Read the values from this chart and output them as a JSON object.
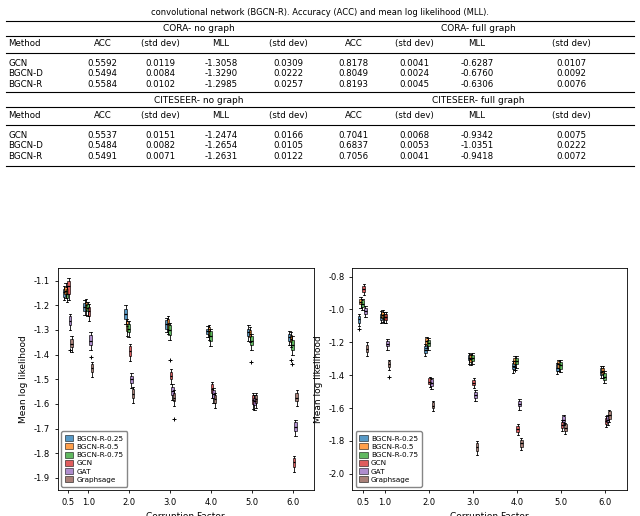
{
  "table_header_top": "convolutional network (BGCN-R). Accuracy (ACC) and mean log likelihood (MLL).",
  "col_headers": [
    "Method",
    "ACC",
    "(std dev)",
    "MLL",
    "(std dev)",
    "ACC",
    "(std dev)",
    "MLL",
    "(std dev)"
  ],
  "cora_rows": [
    [
      "GCN",
      "0.5592",
      "0.0119",
      "-1.3058",
      "0.0309",
      "0.8178",
      "0.0041",
      "-0.6287",
      "0.0107"
    ],
    [
      "BGCN-D",
      "0.5494",
      "0.0084",
      "-1.3290",
      "0.0222",
      "0.8049",
      "0.0024",
      "-0.6760",
      "0.0092"
    ],
    [
      "BGCN-R",
      "0.5584",
      "0.0102",
      "-1.2985",
      "0.0257",
      "0.8193",
      "0.0045",
      "-0.6306",
      "0.0076"
    ]
  ],
  "cite_rows": [
    [
      "GCN",
      "0.5537",
      "0.0151",
      "-1.2474",
      "0.0166",
      "0.7041",
      "0.0068",
      "-0.9342",
      "0.0075"
    ],
    [
      "BGCN-D",
      "0.5484",
      "0.0082",
      "-1.2654",
      "0.0105",
      "0.6837",
      "0.0053",
      "-1.0351",
      "0.0222"
    ],
    [
      "BGCN-R",
      "0.5491",
      "0.0071",
      "-1.2631",
      "0.0122",
      "0.7056",
      "0.0041",
      "-0.9418",
      "0.0072"
    ]
  ],
  "x_positions": [
    0.5,
    1.0,
    2.0,
    3.0,
    4.0,
    5.0,
    6.0
  ],
  "colors": {
    "BGCN-R-0.25": "#1f77b4",
    "BGCN-R-0.5": "#ff7f0e",
    "BGCN-R-0.75": "#2ca02c",
    "GCN": "#d62728",
    "GAT": "#9467bd",
    "Graphsage": "#8c564b"
  },
  "legend_labels": [
    "BGCN-R-0.25",
    "BGCN-R-0.5",
    "BGCN-R-0.75",
    "GCN",
    "GAT",
    "Graphsage"
  ],
  "left_ylim": [
    -1.95,
    -1.05
  ],
  "right_ylim": [
    -2.1,
    -0.75
  ],
  "left_yticks": [
    -1.9,
    -1.8,
    -1.7,
    -1.6,
    -1.5,
    -1.4,
    -1.3,
    -1.2,
    -1.1
  ],
  "right_yticks": [
    -2.0,
    -1.8,
    -1.6,
    -1.4,
    -1.2,
    -1.0,
    -0.8
  ],
  "xlabel": "Corruption Factor",
  "ylabel": "Mean log likelihood",
  "left_plot_data": {
    "BGCN-R-0.25": {
      "0.5": {
        "q1": -1.165,
        "med": -1.148,
        "q3": -1.135,
        "whisk_lo": -1.18,
        "whisk_hi": -1.12,
        "fliers_lo": [],
        "fliers_hi": []
      },
      "1.0": {
        "q1": -1.225,
        "med": -1.205,
        "q3": -1.19,
        "whisk_lo": -1.24,
        "whisk_hi": -1.18,
        "fliers_lo": [],
        "fliers_hi": []
      },
      "2.0": {
        "q1": -1.255,
        "med": -1.235,
        "q3": -1.215,
        "whisk_lo": -1.275,
        "whisk_hi": -1.2,
        "fliers_lo": [],
        "fliers_hi": []
      },
      "3.0": {
        "q1": -1.295,
        "med": -1.275,
        "q3": -1.26,
        "whisk_lo": -1.31,
        "whisk_hi": -1.25,
        "fliers_lo": [],
        "fliers_hi": []
      },
      "4.0": {
        "q1": -1.315,
        "med": -1.305,
        "q3": -1.295,
        "whisk_lo": -1.33,
        "whisk_hi": -1.285,
        "fliers_lo": [],
        "fliers_hi": []
      },
      "5.0": {
        "q1": -1.325,
        "med": -1.31,
        "q3": -1.295,
        "whisk_lo": -1.345,
        "whisk_hi": -1.28,
        "fliers_lo": [],
        "fliers_hi": []
      },
      "6.0": {
        "q1": -1.345,
        "med": -1.33,
        "q3": -1.315,
        "whisk_lo": -1.36,
        "whisk_hi": -1.305,
        "fliers_lo": [],
        "fliers_hi": []
      }
    },
    "BGCN-R-0.5": {
      "0.5": {
        "q1": -1.155,
        "med": -1.14,
        "q3": -1.125,
        "whisk_lo": -1.17,
        "whisk_hi": -1.11,
        "fliers_lo": [],
        "fliers_hi": []
      },
      "1.0": {
        "q1": -1.22,
        "med": -1.2,
        "q3": -1.185,
        "whisk_lo": -1.24,
        "whisk_hi": -1.175,
        "fliers_lo": [],
        "fliers_hi": []
      },
      "2.0": {
        "q1": -1.305,
        "med": -1.285,
        "q3": -1.265,
        "whisk_lo": -1.325,
        "whisk_hi": -1.255,
        "fliers_lo": [],
        "fliers_hi": []
      },
      "3.0": {
        "q1": -1.295,
        "med": -1.275,
        "q3": -1.255,
        "whisk_lo": -1.315,
        "whisk_hi": -1.245,
        "fliers_lo": [],
        "fliers_hi": []
      },
      "4.0": {
        "q1": -1.32,
        "med": -1.305,
        "q3": -1.29,
        "whisk_lo": -1.34,
        "whisk_hi": -1.28,
        "fliers_lo": [],
        "fliers_hi": []
      },
      "5.0": {
        "q1": -1.33,
        "med": -1.315,
        "q3": -1.3,
        "whisk_lo": -1.35,
        "whisk_hi": -1.29,
        "fliers_lo": [],
        "fliers_hi": []
      },
      "6.0": {
        "q1": -1.35,
        "med": -1.335,
        "q3": -1.32,
        "whisk_lo": -1.37,
        "whisk_hi": -1.31,
        "fliers_lo": [
          -1.42
        ],
        "fliers_hi": []
      }
    },
    "BGCN-R-0.75": {
      "0.5": {
        "q1": -1.17,
        "med": -1.155,
        "q3": -1.135,
        "whisk_lo": -1.185,
        "whisk_hi": -1.12,
        "fliers_lo": [],
        "fliers_hi": []
      },
      "1.0": {
        "q1": -1.225,
        "med": -1.21,
        "q3": -1.195,
        "whisk_lo": -1.245,
        "whisk_hi": -1.185,
        "fliers_lo": [],
        "fliers_hi": []
      },
      "2.0": {
        "q1": -1.31,
        "med": -1.295,
        "q3": -1.275,
        "whisk_lo": -1.33,
        "whisk_hi": -1.265,
        "fliers_lo": [],
        "fliers_hi": []
      },
      "3.0": {
        "q1": -1.32,
        "med": -1.3,
        "q3": -1.28,
        "whisk_lo": -1.34,
        "whisk_hi": -1.27,
        "fliers_lo": [
          -1.42
        ],
        "fliers_hi": []
      },
      "4.0": {
        "q1": -1.345,
        "med": -1.325,
        "q3": -1.305,
        "whisk_lo": -1.365,
        "whisk_hi": -1.295,
        "fliers_lo": [],
        "fliers_hi": []
      },
      "5.0": {
        "q1": -1.36,
        "med": -1.345,
        "q3": -1.325,
        "whisk_lo": -1.38,
        "whisk_hi": -1.315,
        "fliers_lo": [
          -1.43
        ],
        "fliers_hi": []
      },
      "6.0": {
        "q1": -1.38,
        "med": -1.36,
        "q3": -1.34,
        "whisk_lo": -1.4,
        "whisk_hi": -1.325,
        "fliers_lo": [
          -1.44
        ],
        "fliers_hi": []
      }
    },
    "GCN": {
      "0.5": {
        "q1": -1.155,
        "med": -1.12,
        "q3": -1.1,
        "whisk_lo": -1.18,
        "whisk_hi": -1.09,
        "fliers_lo": [],
        "fliers_hi": []
      },
      "1.0": {
        "q1": -1.245,
        "med": -1.225,
        "q3": -1.205,
        "whisk_lo": -1.265,
        "whisk_hi": -1.195,
        "fliers_lo": [],
        "fliers_hi": []
      },
      "2.0": {
        "q1": -1.405,
        "med": -1.385,
        "q3": -1.365,
        "whisk_lo": -1.425,
        "whisk_hi": -1.355,
        "fliers_lo": [],
        "fliers_hi": []
      },
      "3.0": {
        "q1": -1.5,
        "med": -1.485,
        "q3": -1.47,
        "whisk_lo": -1.52,
        "whisk_hi": -1.46,
        "fliers_lo": [],
        "fliers_hi": []
      },
      "4.0": {
        "q1": -1.555,
        "med": -1.54,
        "q3": -1.52,
        "whisk_lo": -1.575,
        "whisk_hi": -1.51,
        "fliers_lo": [],
        "fliers_hi": []
      },
      "5.0": {
        "q1": -1.6,
        "med": -1.585,
        "q3": -1.565,
        "whisk_lo": -1.62,
        "whisk_hi": -1.555,
        "fliers_lo": [],
        "fliers_hi": []
      },
      "6.0": {
        "q1": -1.855,
        "med": -1.835,
        "q3": -1.82,
        "whisk_lo": -1.875,
        "whisk_hi": -1.81,
        "fliers_lo": [],
        "fliers_hi": []
      }
    },
    "GAT": {
      "0.5": {
        "q1": -1.28,
        "med": -1.265,
        "q3": -1.245,
        "whisk_lo": -1.3,
        "whisk_hi": -1.235,
        "fliers_lo": [
          -1.38
        ],
        "fliers_hi": []
      },
      "1.0": {
        "q1": -1.36,
        "med": -1.345,
        "q3": -1.32,
        "whisk_lo": -1.38,
        "whisk_hi": -1.31,
        "fliers_lo": [
          -1.41
        ],
        "fliers_hi": []
      },
      "2.0": {
        "q1": -1.515,
        "med": -1.5,
        "q3": -1.485,
        "whisk_lo": -1.535,
        "whisk_hi": -1.475,
        "fliers_lo": [],
        "fliers_hi": []
      },
      "3.0": {
        "q1": -1.565,
        "med": -1.548,
        "q3": -1.53,
        "whisk_lo": -1.585,
        "whisk_hi": -1.52,
        "fliers_lo": [],
        "fliers_hi": []
      },
      "4.0": {
        "q1": -1.575,
        "med": -1.56,
        "q3": -1.545,
        "whisk_lo": -1.595,
        "whisk_hi": -1.535,
        "fliers_lo": [],
        "fliers_hi": []
      },
      "5.0": {
        "q1": -1.605,
        "med": -1.59,
        "q3": -1.575,
        "whisk_lo": -1.625,
        "whisk_hi": -1.565,
        "fliers_lo": [],
        "fliers_hi": []
      },
      "6.0": {
        "q1": -1.71,
        "med": -1.695,
        "q3": -1.675,
        "whisk_lo": -1.73,
        "whisk_hi": -1.665,
        "fliers_lo": [],
        "fliers_hi": []
      }
    },
    "Graphsage": {
      "0.5": {
        "q1": -1.37,
        "med": -1.355,
        "q3": -1.335,
        "whisk_lo": -1.39,
        "whisk_hi": -1.325,
        "fliers_lo": [],
        "fliers_hi": []
      },
      "1.0": {
        "q1": -1.47,
        "med": -1.455,
        "q3": -1.44,
        "whisk_lo": -1.49,
        "whisk_hi": -1.43,
        "fliers_lo": [],
        "fliers_hi": []
      },
      "2.0": {
        "q1": -1.575,
        "med": -1.56,
        "q3": -1.54,
        "whisk_lo": -1.595,
        "whisk_hi": -1.53,
        "fliers_lo": [],
        "fliers_hi": []
      },
      "3.0": {
        "q1": -1.59,
        "med": -1.575,
        "q3": -1.555,
        "whisk_lo": -1.61,
        "whisk_hi": -1.545,
        "fliers_lo": [
          -1.66
        ],
        "fliers_hi": []
      },
      "4.0": {
        "q1": -1.595,
        "med": -1.58,
        "q3": -1.565,
        "whisk_lo": -1.615,
        "whisk_hi": -1.555,
        "fliers_lo": [],
        "fliers_hi": []
      },
      "5.0": {
        "q1": -1.595,
        "med": -1.58,
        "q3": -1.565,
        "whisk_lo": -1.615,
        "whisk_hi": -1.555,
        "fliers_lo": [],
        "fliers_hi": []
      },
      "6.0": {
        "q1": -1.59,
        "med": -1.575,
        "q3": -1.555,
        "whisk_lo": -1.61,
        "whisk_hi": -1.545,
        "fliers_lo": [],
        "fliers_hi": []
      }
    }
  },
  "right_plot_data": {
    "BGCN-R-0.25": {
      "0.5": {
        "q1": -1.08,
        "med": -1.06,
        "q3": -1.04,
        "whisk_lo": -1.1,
        "whisk_hi": -1.03,
        "fliers_lo": [
          -1.12
        ],
        "fliers_hi": []
      },
      "1.0": {
        "q1": -1.065,
        "med": -1.045,
        "q3": -1.025,
        "whisk_lo": -1.085,
        "whisk_hi": -1.01,
        "fliers_lo": [],
        "fliers_hi": []
      },
      "2.0": {
        "q1": -1.265,
        "med": -1.245,
        "q3": -1.225,
        "whisk_lo": -1.285,
        "whisk_hi": -1.21,
        "fliers_lo": [],
        "fliers_hi": []
      },
      "3.0": {
        "q1": -1.31,
        "med": -1.295,
        "q3": -1.275,
        "whisk_lo": -1.33,
        "whisk_hi": -1.265,
        "fliers_lo": [],
        "fliers_hi": []
      },
      "4.0": {
        "q1": -1.365,
        "med": -1.345,
        "q3": -1.325,
        "whisk_lo": -1.385,
        "whisk_hi": -1.315,
        "fliers_lo": [],
        "fliers_hi": []
      },
      "5.0": {
        "q1": -1.375,
        "med": -1.355,
        "q3": -1.335,
        "whisk_lo": -1.395,
        "whisk_hi": -1.325,
        "fliers_lo": [],
        "fliers_hi": []
      },
      "6.0": {
        "q1": -1.4,
        "med": -1.38,
        "q3": -1.355,
        "whisk_lo": -1.42,
        "whisk_hi": -1.345,
        "fliers_lo": [],
        "fliers_hi": []
      }
    },
    "BGCN-R-0.5": {
      "0.5": {
        "q1": -0.97,
        "med": -0.955,
        "q3": -0.935,
        "whisk_lo": -0.99,
        "whisk_hi": -0.925,
        "fliers_lo": [],
        "fliers_hi": []
      },
      "1.0": {
        "q1": -1.055,
        "med": -1.035,
        "q3": -1.015,
        "whisk_lo": -1.075,
        "whisk_hi": -1.005,
        "fliers_lo": [],
        "fliers_hi": []
      },
      "2.0": {
        "q1": -1.215,
        "med": -1.195,
        "q3": -1.175,
        "whisk_lo": -1.235,
        "whisk_hi": -1.165,
        "fliers_lo": [],
        "fliers_hi": []
      },
      "3.0": {
        "q1": -1.32,
        "med": -1.3,
        "q3": -1.28,
        "whisk_lo": -1.34,
        "whisk_hi": -1.27,
        "fliers_lo": [],
        "fliers_hi": []
      },
      "4.0": {
        "q1": -1.33,
        "med": -1.315,
        "q3": -1.295,
        "whisk_lo": -1.35,
        "whisk_hi": -1.285,
        "fliers_lo": [
          -1.37
        ],
        "fliers_hi": []
      },
      "5.0": {
        "q1": -1.355,
        "med": -1.335,
        "q3": -1.315,
        "whisk_lo": -1.375,
        "whisk_hi": -1.305,
        "fliers_lo": [],
        "fliers_hi": []
      },
      "6.0": {
        "q1": -1.395,
        "med": -1.375,
        "q3": -1.355,
        "whisk_lo": -1.415,
        "whisk_hi": -1.345,
        "fliers_lo": [],
        "fliers_hi": []
      }
    },
    "BGCN-R-0.75": {
      "0.5": {
        "q1": -0.985,
        "med": -0.965,
        "q3": -0.945,
        "whisk_lo": -1.005,
        "whisk_hi": -0.935,
        "fliers_lo": [],
        "fliers_hi": []
      },
      "1.0": {
        "q1": -1.06,
        "med": -1.045,
        "q3": -1.025,
        "whisk_lo": -1.08,
        "whisk_hi": -1.015,
        "fliers_lo": [],
        "fliers_hi": []
      },
      "2.0": {
        "q1": -1.225,
        "med": -1.205,
        "q3": -1.185,
        "whisk_lo": -1.245,
        "whisk_hi": -1.175,
        "fliers_lo": [],
        "fliers_hi": []
      },
      "3.0": {
        "q1": -1.315,
        "med": -1.295,
        "q3": -1.275,
        "whisk_lo": -1.335,
        "whisk_hi": -1.265,
        "fliers_lo": [],
        "fliers_hi": []
      },
      "4.0": {
        "q1": -1.335,
        "med": -1.315,
        "q3": -1.295,
        "whisk_lo": -1.355,
        "whisk_hi": -1.285,
        "fliers_lo": [],
        "fliers_hi": []
      },
      "5.0": {
        "q1": -1.36,
        "med": -1.34,
        "q3": -1.32,
        "whisk_lo": -1.38,
        "whisk_hi": -1.31,
        "fliers_lo": [],
        "fliers_hi": []
      },
      "6.0": {
        "q1": -1.43,
        "med": -1.41,
        "q3": -1.385,
        "whisk_lo": -1.45,
        "whisk_hi": -1.375,
        "fliers_lo": [],
        "fliers_hi": []
      }
    },
    "GCN": {
      "0.5": {
        "q1": -0.895,
        "med": -0.875,
        "q3": -0.855,
        "whisk_lo": -0.915,
        "whisk_hi": -0.845,
        "fliers_lo": [],
        "fliers_hi": []
      },
      "1.0": {
        "q1": -1.065,
        "med": -1.045,
        "q3": -1.025,
        "whisk_lo": -1.085,
        "whisk_hi": -1.015,
        "fliers_lo": [],
        "fliers_hi": []
      },
      "2.0": {
        "q1": -1.455,
        "med": -1.44,
        "q3": -1.42,
        "whisk_lo": -1.475,
        "whisk_hi": -1.41,
        "fliers_lo": [],
        "fliers_hi": []
      },
      "3.0": {
        "q1": -1.46,
        "med": -1.445,
        "q3": -1.43,
        "whisk_lo": -1.48,
        "whisk_hi": -1.42,
        "fliers_lo": [],
        "fliers_hi": []
      },
      "4.0": {
        "q1": -1.745,
        "med": -1.73,
        "q3": -1.71,
        "whisk_lo": -1.765,
        "whisk_hi": -1.7,
        "fliers_lo": [],
        "fliers_hi": []
      },
      "5.0": {
        "q1": -1.72,
        "med": -1.705,
        "q3": -1.685,
        "whisk_lo": -1.74,
        "whisk_hi": -1.675,
        "fliers_lo": [],
        "fliers_hi": []
      },
      "6.0": {
        "q1": -1.695,
        "med": -1.68,
        "q3": -1.66,
        "whisk_lo": -1.715,
        "whisk_hi": -1.65,
        "fliers_lo": [],
        "fliers_hi": []
      }
    },
    "GAT": {
      "0.5": {
        "q1": -1.025,
        "med": -1.01,
        "q3": -0.99,
        "whisk_lo": -1.045,
        "whisk_hi": -0.98,
        "fliers_lo": [],
        "fliers_hi": []
      },
      "1.0": {
        "q1": -1.225,
        "med": -1.21,
        "q3": -1.19,
        "whisk_lo": -1.245,
        "whisk_hi": -1.18,
        "fliers_lo": [],
        "fliers_hi": []
      },
      "2.0": {
        "q1": -1.465,
        "med": -1.445,
        "q3": -1.425,
        "whisk_lo": -1.485,
        "whisk_hi": -1.415,
        "fliers_lo": [],
        "fliers_hi": []
      },
      "3.0": {
        "q1": -1.54,
        "med": -1.52,
        "q3": -1.5,
        "whisk_lo": -1.56,
        "whisk_hi": -1.49,
        "fliers_lo": [],
        "fliers_hi": []
      },
      "4.0": {
        "q1": -1.59,
        "med": -1.575,
        "q3": -1.555,
        "whisk_lo": -1.61,
        "whisk_hi": -1.545,
        "fliers_lo": [],
        "fliers_hi": []
      },
      "5.0": {
        "q1": -1.685,
        "med": -1.67,
        "q3": -1.65,
        "whisk_lo": -1.705,
        "whisk_hi": -1.64,
        "fliers_lo": [],
        "fliers_hi": []
      },
      "6.0": {
        "q1": -1.685,
        "med": -1.67,
        "q3": -1.65,
        "whisk_lo": -1.705,
        "whisk_hi": -1.64,
        "fliers_lo": [],
        "fliers_hi": []
      }
    },
    "Graphsage": {
      "0.5": {
        "q1": -1.26,
        "med": -1.24,
        "q3": -1.215,
        "whisk_lo": -1.285,
        "whisk_hi": -1.2,
        "fliers_lo": [],
        "fliers_hi": []
      },
      "1.0": {
        "q1": -1.35,
        "med": -1.335,
        "q3": -1.315,
        "whisk_lo": -1.37,
        "whisk_hi": -1.305,
        "fliers_lo": [
          -1.41
        ],
        "fliers_hi": []
      },
      "2.0": {
        "q1": -1.6,
        "med": -1.585,
        "q3": -1.565,
        "whisk_lo": -1.62,
        "whisk_hi": -1.555,
        "fliers_lo": [],
        "fliers_hi": []
      },
      "3.0": {
        "q1": -1.86,
        "med": -1.84,
        "q3": -1.815,
        "whisk_lo": -1.885,
        "whisk_hi": -1.8,
        "fliers_lo": [],
        "fliers_hi": []
      },
      "4.0": {
        "q1": -1.835,
        "med": -1.815,
        "q3": -1.795,
        "whisk_lo": -1.855,
        "whisk_hi": -1.785,
        "fliers_lo": [],
        "fliers_hi": []
      },
      "5.0": {
        "q1": -1.74,
        "med": -1.72,
        "q3": -1.7,
        "whisk_lo": -1.76,
        "whisk_hi": -1.69,
        "fliers_lo": [],
        "fliers_hi": []
      },
      "6.0": {
        "q1": -1.665,
        "med": -1.645,
        "q3": -1.62,
        "whisk_lo": -1.685,
        "whisk_hi": -1.61,
        "fliers_lo": [],
        "fliers_hi": []
      }
    }
  }
}
